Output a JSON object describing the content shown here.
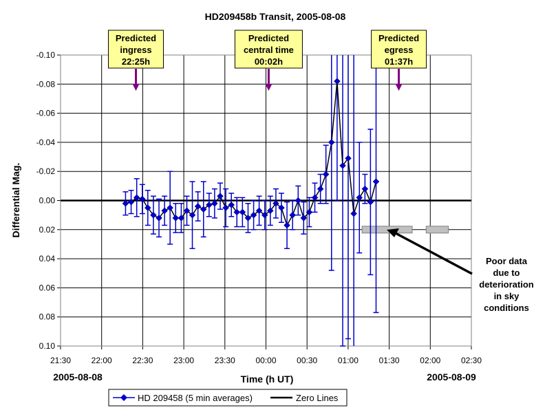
{
  "chart_data": {
    "type": "line",
    "title": "HD209458b Transit, 2005-08-08",
    "xlabel": "Time (h UT)",
    "ylabel": "Differential Mag.",
    "x_range_hours": [
      21.5,
      26.5
    ],
    "y_range": [
      -0.1,
      0.1
    ],
    "y_inverted": true,
    "grid": true,
    "x_ticks": [
      {
        "h": 21.5,
        "label": "21:30"
      },
      {
        "h": 22.0,
        "label": "22:00"
      },
      {
        "h": 22.5,
        "label": "22:30"
      },
      {
        "h": 23.0,
        "label": "23:00"
      },
      {
        "h": 23.5,
        "label": "23:30"
      },
      {
        "h": 24.0,
        "label": "00:00"
      },
      {
        "h": 24.5,
        "label": "00:30"
      },
      {
        "h": 25.0,
        "label": "01:00"
      },
      {
        "h": 25.5,
        "label": "01:30"
      },
      {
        "h": 26.0,
        "label": "02:00"
      },
      {
        "h": 26.5,
        "label": "02:30"
      }
    ],
    "y_ticks": [
      {
        "v": -0.1,
        "label": "-0.10"
      },
      {
        "v": -0.08,
        "label": "-0.08"
      },
      {
        "v": -0.06,
        "label": "-0.06"
      },
      {
        "v": -0.04,
        "label": "-0.04"
      },
      {
        "v": -0.02,
        "label": "-0.02"
      },
      {
        "v": 0.0,
        "label": "0.00"
      },
      {
        "v": 0.02,
        "label": "0.02"
      },
      {
        "v": 0.04,
        "label": "0.04"
      },
      {
        "v": 0.06,
        "label": "0.06"
      },
      {
        "v": 0.08,
        "label": "0.08"
      },
      {
        "v": 0.1,
        "label": "0.10"
      }
    ],
    "date_labels": {
      "left": "2005-08-08",
      "right": "2005-08-09"
    },
    "series": [
      {
        "name": "HD 209458 (5 min averages)",
        "color": "#0000cc",
        "marker": "diamond",
        "points": [
          {
            "h": 22.291,
            "y": 0.002,
            "err": 0.008
          },
          {
            "h": 22.359,
            "y": 0.001,
            "err": 0.008
          },
          {
            "h": 22.427,
            "y": -0.002,
            "err": 0.013
          },
          {
            "h": 22.495,
            "y": -0.001,
            "err": 0.01
          },
          {
            "h": 22.562,
            "y": 0.005,
            "err": 0.012
          },
          {
            "h": 22.63,
            "y": 0.01,
            "err": 0.013
          },
          {
            "h": 22.698,
            "y": 0.012,
            "err": 0.013
          },
          {
            "h": 22.766,
            "y": 0.007,
            "err": 0.01
          },
          {
            "h": 22.833,
            "y": 0.005,
            "err": 0.025
          },
          {
            "h": 22.901,
            "y": 0.012,
            "err": 0.01
          },
          {
            "h": 22.969,
            "y": 0.012,
            "err": 0.01
          },
          {
            "h": 23.037,
            "y": 0.007,
            "err": 0.01
          },
          {
            "h": 23.104,
            "y": 0.01,
            "err": 0.023
          },
          {
            "h": 23.172,
            "y": 0.004,
            "err": 0.01
          },
          {
            "h": 23.24,
            "y": 0.006,
            "err": 0.019
          },
          {
            "h": 23.308,
            "y": 0.003,
            "err": 0.008
          },
          {
            "h": 23.375,
            "y": 0.002,
            "err": 0.01
          },
          {
            "h": 23.443,
            "y": -0.003,
            "err": 0.009
          },
          {
            "h": 23.511,
            "y": 0.005,
            "err": 0.013
          },
          {
            "h": 23.579,
            "y": 0.003,
            "err": 0.008
          },
          {
            "h": 23.646,
            "y": 0.008,
            "err": 0.01
          },
          {
            "h": 23.714,
            "y": 0.008,
            "err": 0.01
          },
          {
            "h": 23.782,
            "y": 0.012,
            "err": 0.01
          },
          {
            "h": 23.85,
            "y": 0.01,
            "err": 0.01
          },
          {
            "h": 23.917,
            "y": 0.007,
            "err": 0.01
          },
          {
            "h": 23.985,
            "y": 0.01,
            "err": 0.01
          },
          {
            "h": 24.053,
            "y": 0.007,
            "err": 0.01
          },
          {
            "h": 24.121,
            "y": 0.002,
            "err": 0.01
          },
          {
            "h": 24.188,
            "y": 0.005,
            "err": 0.01
          },
          {
            "h": 24.256,
            "y": 0.017,
            "err": 0.016
          },
          {
            "h": 24.324,
            "y": 0.01,
            "err": 0.01
          },
          {
            "h": 24.392,
            "y": 0.0,
            "err": 0.01
          },
          {
            "h": 24.459,
            "y": 0.012,
            "err": 0.011
          },
          {
            "h": 24.527,
            "y": 0.008,
            "err": 0.01
          },
          {
            "h": 24.595,
            "y": -0.002,
            "err": 0.01
          },
          {
            "h": 24.663,
            "y": -0.008,
            "err": 0.01
          },
          {
            "h": 24.73,
            "y": -0.018,
            "err": 0.02
          },
          {
            "h": 24.798,
            "y": -0.04,
            "err": 0.088
          },
          {
            "h": 24.866,
            "y": -0.082,
            "err": 0.082
          },
          {
            "h": 24.934,
            "y": -0.024,
            "err": 0.124
          },
          {
            "h": 25.001,
            "y": -0.029,
            "err": 0.124
          },
          {
            "h": 25.069,
            "y": 0.009,
            "err": 0.124
          },
          {
            "h": 25.137,
            "y": -0.002,
            "err": 0.038
          },
          {
            "h": 25.205,
            "y": -0.008,
            "err": 0.01
          },
          {
            "h": 25.272,
            "y": 0.001,
            "err": 0.05
          },
          {
            "h": 25.34,
            "y": -0.013,
            "err": 0.09
          }
        ]
      },
      {
        "name": "Zero Lines",
        "color": "#000000",
        "y": 0.0
      }
    ],
    "annotations": [
      {
        "lines": [
          "Predicted",
          "ingress",
          "22:25h"
        ],
        "h": 22.417,
        "bg": "#ffff99",
        "arrow_color": "#800080"
      },
      {
        "lines": [
          "Predicted",
          "central time",
          "00:02h"
        ],
        "h": 24.033,
        "bg": "#ffff99",
        "arrow_color": "#800080"
      },
      {
        "lines": [
          "Predicted",
          "egress",
          "01:37h"
        ],
        "h": 25.617,
        "bg": "#ffff99",
        "arrow_color": "#800080"
      }
    ],
    "poor_data_note": [
      "Poor data",
      "due to",
      "deterioration",
      "in sky",
      "conditions"
    ],
    "gray_bars": [
      {
        "h_start": 25.17,
        "h_end": 25.78,
        "y": 0.02
      },
      {
        "h_start": 25.95,
        "h_end": 26.22,
        "y": 0.02
      }
    ],
    "legend_position": "bottom"
  }
}
